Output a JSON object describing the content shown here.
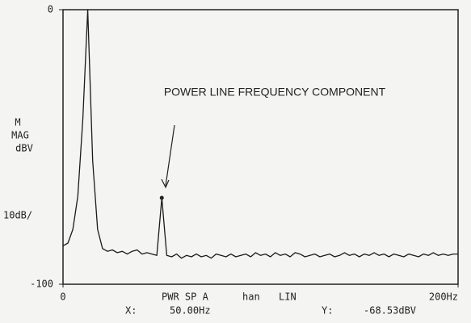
{
  "chart_data": {
    "type": "line",
    "annotation": "POWER LINE FREQUENCY COMPONENT",
    "y_label_lines": [
      "M",
      "MAG",
      "dBV"
    ],
    "y_scale": "10dB/",
    "status": {
      "mode": "PWR SP A",
      "window": "han",
      "scale": "LIN",
      "x_name": "X:",
      "x_value": "50.00Hz",
      "y_name": "Y:",
      "y_value": "-68.53dBV"
    },
    "marker": {
      "x": 50,
      "y": -68.53
    },
    "xlim": [
      0,
      200
    ],
    "xticks": [
      0,
      {
        "value": 200,
        "label": "200Hz"
      }
    ],
    "ylim": [
      -100,
      0
    ],
    "yticks": [
      -100,
      0
    ],
    "x": [
      0,
      2.5,
      5,
      7.5,
      10,
      12.5,
      15,
      17.5,
      20,
      22.5,
      25,
      27.5,
      30,
      32.5,
      35,
      37.5,
      40,
      42.5,
      45,
      47.5,
      50,
      52.5,
      55,
      57.5,
      60,
      62.5,
      65,
      67.5,
      70,
      72.5,
      75,
      77.5,
      80,
      82.5,
      85,
      87.5,
      90,
      92.5,
      95,
      97.5,
      100,
      102.5,
      105,
      107.5,
      110,
      112.5,
      115,
      117.5,
      120,
      122.5,
      125,
      127.5,
      130,
      132.5,
      135,
      137.5,
      140,
      142.5,
      145,
      147.5,
      150,
      152.5,
      155,
      157.5,
      160,
      162.5,
      165,
      167.5,
      170,
      172.5,
      175,
      177.5,
      180,
      182.5,
      185,
      187.5,
      190,
      192.5,
      195,
      197.5,
      200
    ],
    "series": [
      {
        "color": "#1a1a1a",
        "values": [
          -86,
          -85,
          -80,
          -68,
          -40,
          0,
          -55,
          -80,
          -87,
          -88,
          -87.5,
          -88.5,
          -88,
          -89,
          -88,
          -87.5,
          -89,
          -88.5,
          -89,
          -89.5,
          -68.53,
          -89.5,
          -90,
          -89,
          -90.5,
          -89.5,
          -90,
          -89,
          -90,
          -89.5,
          -90.5,
          -89,
          -89.5,
          -90,
          -89,
          -90,
          -89.5,
          -89,
          -90,
          -88.5,
          -89.5,
          -89,
          -90,
          -88.5,
          -89.5,
          -89,
          -90,
          -88.5,
          -89,
          -90,
          -89.5,
          -89,
          -90,
          -89.5,
          -89,
          -90,
          -89.5,
          -88.5,
          -89.5,
          -89,
          -90,
          -89,
          -89.5,
          -88.5,
          -89.5,
          -89,
          -90,
          -89,
          -89.5,
          -90,
          -89,
          -89.5,
          -90,
          -89,
          -89.5,
          -88.5,
          -89.5,
          -89,
          -89.5,
          -89,
          -89
        ]
      }
    ]
  }
}
